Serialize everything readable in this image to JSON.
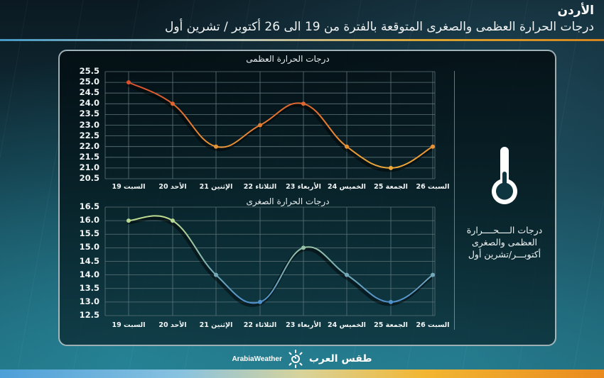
{
  "header": {
    "country": "الأردن",
    "subtitle": "درجات الحرارة العظمى والصغرى المتوقعة  بالفترة من 19 الى 26 أكتوبر / تشرين أول"
  },
  "side_panel": {
    "icon": "thermometer-icon",
    "line1": "درجات الــــحــــرارة",
    "line2": "العظمى والصغرى",
    "line3": "أكتوبـــر/تشرين أول"
  },
  "footer": {
    "brand_en": "ArabiaWeather",
    "brand_ar": "طقس العرب",
    "logo_icon": "sun-swirl-icon"
  },
  "colors": {
    "max_start": "#d9452b",
    "max_end": "#f0b43a",
    "min_start": "#c9e58a",
    "min_end": "#3f86d6",
    "grid": "#5d7479",
    "card_border": "#d2e1e6"
  },
  "chart_data": [
    {
      "type": "line",
      "title": "درجات الحرارة العظمى",
      "categories": [
        "السبت 19",
        "الأحد 20",
        "الإثنين 21",
        "الثلاثاء 22",
        "الأربعاء 23",
        "الخميس 24",
        "الجمعة 25",
        "السبت 26"
      ],
      "series": [
        {
          "name": "درجات الحرارة العظمى",
          "values": [
            25,
            24,
            22,
            23,
            24,
            22,
            21,
            22
          ]
        }
      ],
      "yticks": [
        "25.5",
        "25.0",
        "24.5",
        "24.0",
        "23.5",
        "23.0",
        "22.5",
        "22.0",
        "21.5",
        "21.0",
        "20.5"
      ],
      "ylim": [
        20.5,
        25.5
      ],
      "xlabel": "",
      "ylabel": "",
      "grid": true,
      "legend": "none"
    },
    {
      "type": "line",
      "title": "درجات الحرارة الصغرى",
      "categories": [
        "السبت 19",
        "الأحد 20",
        "الإثنين 21",
        "الثلاثاء 22",
        "الأربعاء 23",
        "الخميس 24",
        "الجمعة 25",
        "السبت 26"
      ],
      "series": [
        {
          "name": "درجات الحرارة الصغرى",
          "values": [
            16,
            16,
            14,
            13,
            15,
            14,
            13,
            14
          ]
        }
      ],
      "yticks": [
        "16.5",
        "16.0",
        "15.5",
        "15.0",
        "14.5",
        "14.0",
        "13.5",
        "13.0",
        "12.5"
      ],
      "ylim": [
        12.5,
        16.5
      ],
      "xlabel": "",
      "ylabel": "",
      "grid": true,
      "legend": "none"
    }
  ]
}
